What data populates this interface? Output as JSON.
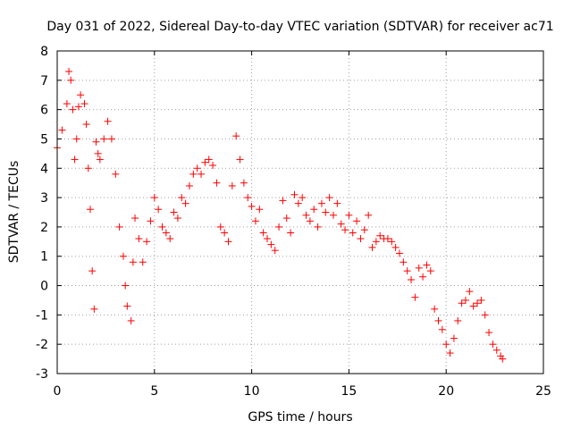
{
  "chart_data": {
    "type": "scatter",
    "title": "Day 031 of 2022, Sidereal Day-to-day VTEC variation (SDTVAR) for receiver ac71",
    "xlabel": "GPS time / hours",
    "ylabel": "SDTVAR / TECUs",
    "xlim": [
      0,
      25
    ],
    "ylim": [
      -3,
      8
    ],
    "xticks": [
      0,
      5,
      10,
      15,
      20,
      25
    ],
    "yticks": [
      -3,
      -2,
      -1,
      0,
      1,
      2,
      3,
      4,
      5,
      6,
      7,
      8
    ],
    "grid": true,
    "marker": "+",
    "color": "#ff0000",
    "series": [
      {
        "name": "SDTVAR",
        "x": [
          0.0,
          0.25,
          0.5,
          0.6,
          0.7,
          0.8,
          0.9,
          1.0,
          1.1,
          1.2,
          1.4,
          1.5,
          1.6,
          1.7,
          1.8,
          1.9,
          2.0,
          2.1,
          2.2,
          2.4,
          2.6,
          2.8,
          3.0,
          3.2,
          3.4,
          3.5,
          3.6,
          3.8,
          3.9,
          4.0,
          4.2,
          4.4,
          4.6,
          4.8,
          5.0,
          5.2,
          5.4,
          5.6,
          5.8,
          6.0,
          6.2,
          6.4,
          6.6,
          6.8,
          7.0,
          7.2,
          7.4,
          7.6,
          7.8,
          8.0,
          8.2,
          8.4,
          8.6,
          8.8,
          9.0,
          9.2,
          9.4,
          9.6,
          9.8,
          10.0,
          10.2,
          10.4,
          10.6,
          10.8,
          11.0,
          11.2,
          11.4,
          11.6,
          11.8,
          12.0,
          12.2,
          12.4,
          12.6,
          12.8,
          13.0,
          13.2,
          13.4,
          13.6,
          13.8,
          14.0,
          14.2,
          14.4,
          14.6,
          14.8,
          15.0,
          15.2,
          15.4,
          15.6,
          15.8,
          16.0,
          16.2,
          16.4,
          16.6,
          16.8,
          17.0,
          17.2,
          17.4,
          17.6,
          17.8,
          18.0,
          18.2,
          18.4,
          18.6,
          18.8,
          19.0,
          19.2,
          19.4,
          19.6,
          19.8,
          20.0,
          20.2,
          20.4,
          20.6,
          20.8,
          21.0,
          21.2,
          21.4,
          21.6,
          21.8,
          22.0,
          22.2,
          22.4,
          22.6,
          22.8,
          22.9
        ],
        "y": [
          4.7,
          5.3,
          6.2,
          7.3,
          7.0,
          6.0,
          4.3,
          5.0,
          6.1,
          6.5,
          6.2,
          5.5,
          4.0,
          2.6,
          0.5,
          -0.8,
          4.9,
          4.5,
          4.3,
          5.0,
          5.6,
          5.0,
          3.8,
          2.0,
          1.0,
          0.0,
          -0.7,
          -1.2,
          0.8,
          2.3,
          1.6,
          0.8,
          1.5,
          2.2,
          3.0,
          2.6,
          2.0,
          1.8,
          1.6,
          2.5,
          2.3,
          3.0,
          2.8,
          3.4,
          3.8,
          4.0,
          3.8,
          4.2,
          4.3,
          4.1,
          3.5,
          2.0,
          1.8,
          1.5,
          3.4,
          5.1,
          4.3,
          3.5,
          3.0,
          2.7,
          2.2,
          2.6,
          1.8,
          1.6,
          1.4,
          1.2,
          2.0,
          2.9,
          2.3,
          1.8,
          3.1,
          2.8,
          3.0,
          2.4,
          2.2,
          2.6,
          2.0,
          2.8,
          2.5,
          3.0,
          2.4,
          2.8,
          2.1,
          1.9,
          2.4,
          1.8,
          2.2,
          1.6,
          1.9,
          2.4,
          1.3,
          1.5,
          1.7,
          1.6,
          1.6,
          1.5,
          1.3,
          1.1,
          0.8,
          0.5,
          0.2,
          -0.4,
          0.6,
          0.3,
          0.7,
          0.5,
          -0.8,
          -1.2,
          -1.5,
          -2.0,
          -2.3,
          -1.8,
          -1.2,
          -0.6,
          -0.5,
          -0.2,
          -0.7,
          -0.6,
          -0.5,
          -1.0,
          -1.6,
          -2.0,
          -2.2,
          -2.4,
          -2.5
        ]
      }
    ]
  }
}
